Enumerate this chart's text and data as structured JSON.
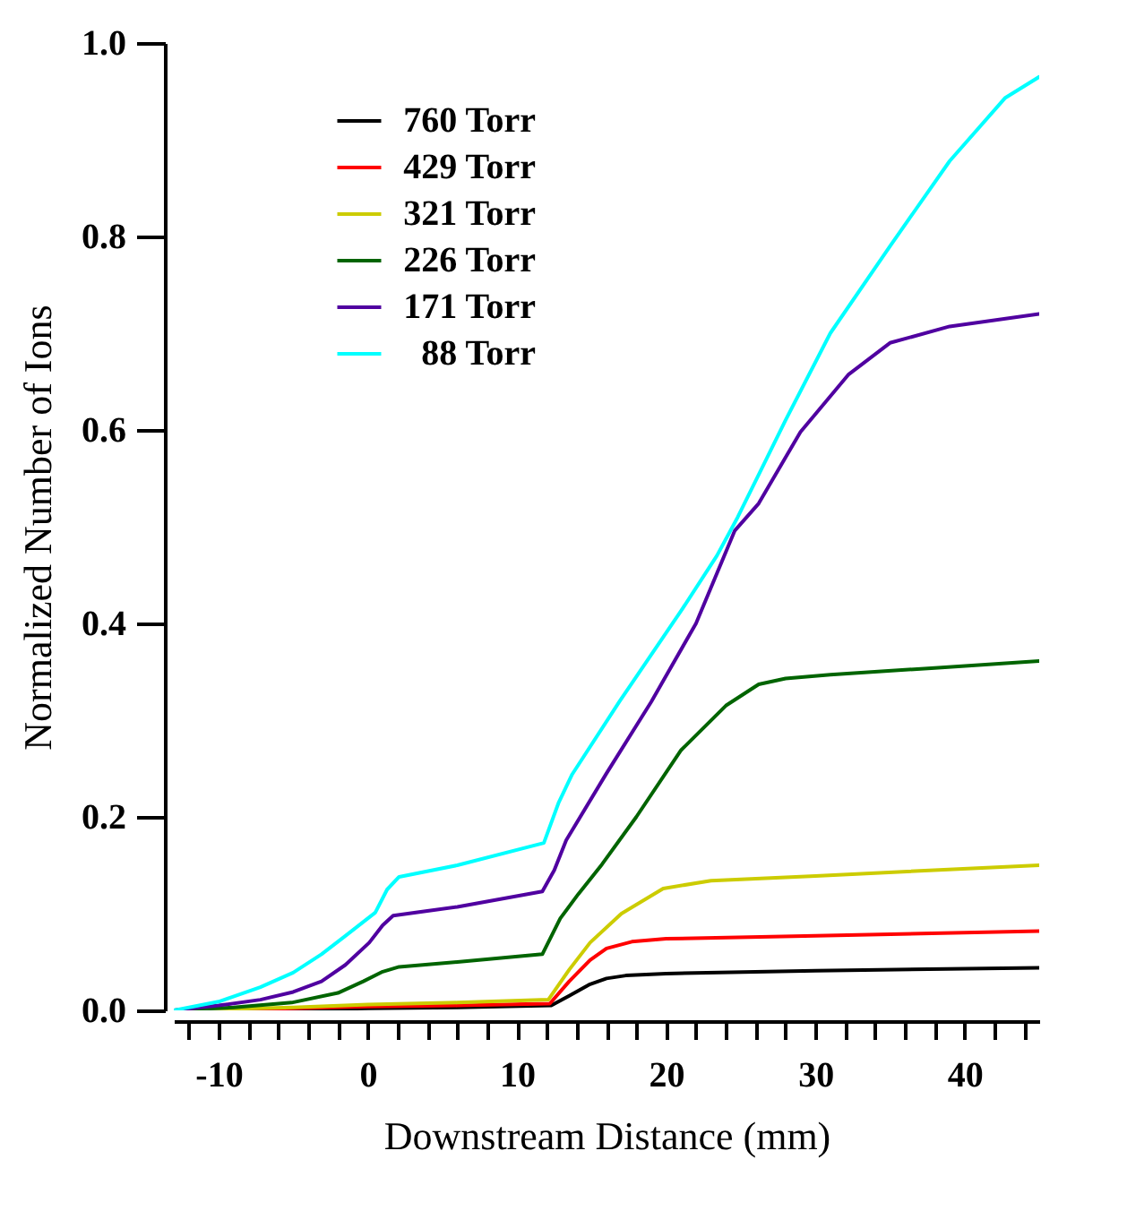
{
  "chart_data": {
    "type": "line",
    "xlabel": "Downstream Distance (mm)",
    "ylabel": "Normalized Number of Ions",
    "xlim": [
      -13,
      45
    ],
    "ylim": [
      0,
      1.0
    ],
    "xticks": [
      {
        "value": -12,
        "label": null
      },
      {
        "value": -10,
        "label": "-10"
      },
      {
        "value": -8,
        "label": null
      },
      {
        "value": -6,
        "label": null
      },
      {
        "value": -4,
        "label": null
      },
      {
        "value": -2,
        "label": null
      },
      0,
      {
        "value": 2,
        "label": null
      },
      {
        "value": 4,
        "label": null
      },
      {
        "value": 6,
        "label": null
      },
      {
        "value": 8,
        "label": null
      },
      10,
      {
        "value": 12,
        "label": null
      },
      {
        "value": 14,
        "label": null
      },
      {
        "value": 16,
        "label": null
      },
      {
        "value": 18,
        "label": null
      },
      20,
      {
        "value": 22,
        "label": null
      },
      {
        "value": 24,
        "label": null
      },
      {
        "value": 26,
        "label": null
      },
      {
        "value": 28,
        "label": null
      },
      30,
      {
        "value": 32,
        "label": null
      },
      {
        "value": 34,
        "label": null
      },
      {
        "value": 36,
        "label": null
      },
      {
        "value": 38,
        "label": null
      },
      40,
      {
        "value": 42,
        "label": null
      },
      {
        "value": 44,
        "label": null
      }
    ],
    "yticks": [
      {
        "value": 0,
        "label": "0.0"
      },
      {
        "value": 0.2,
        "label": "0.2"
      },
      {
        "value": 0.4,
        "label": "0.4"
      },
      {
        "value": 0.6,
        "label": "0.6"
      },
      {
        "value": 0.8,
        "label": "0.8"
      },
      {
        "value": 1,
        "label": "1.0"
      }
    ],
    "grid": false,
    "legend": "top left",
    "line_style": "solid",
    "marker": "none",
    "series": [
      {
        "name": "760 Torr",
        "color": "#000000",
        "x": [
          -13,
          -5,
          0,
          6,
          12.3,
          13.5,
          14.9,
          16,
          17.3,
          20,
          30,
          45
        ],
        "values": [
          0,
          0.001,
          0.002,
          0.003,
          0.005,
          0.015,
          0.027,
          0.033,
          0.036,
          0.038,
          0.041,
          0.044
        ]
      },
      {
        "name": "429 Torr",
        "color": "#ff0000",
        "x": [
          -13,
          -5,
          0,
          6,
          12.2,
          13.5,
          14.9,
          16,
          17.7,
          20,
          30,
          45
        ],
        "values": [
          0,
          0.002,
          0.004,
          0.005,
          0.007,
          0.03,
          0.052,
          0.064,
          0.071,
          0.074,
          0.077,
          0.082
        ]
      },
      {
        "name": "321 Torr",
        "color": "#cccc00",
        "x": [
          -13,
          -5,
          0,
          6,
          12.1,
          13.5,
          14.9,
          17,
          19.8,
          23,
          30,
          45
        ],
        "values": [
          0,
          0.003,
          0.006,
          0.008,
          0.011,
          0.042,
          0.07,
          0.1,
          0.126,
          0.134,
          0.139,
          0.15
        ]
      },
      {
        "name": "226 Torr",
        "color": "#006400",
        "x": [
          -13,
          -9,
          -5.1,
          -2,
          -0.3,
          1,
          2.1,
          6,
          11.7,
          12.9,
          14.1,
          15.7,
          18,
          21,
          24,
          26.2,
          28,
          31,
          38,
          45
        ],
        "values": [
          0,
          0.003,
          0.008,
          0.018,
          0.03,
          0.04,
          0.045,
          0.05,
          0.058,
          0.095,
          0.12,
          0.151,
          0.2,
          0.269,
          0.315,
          0.337,
          0.343,
          0.347,
          0.354,
          0.361
        ]
      },
      {
        "name": "171 Torr",
        "color": "#5000a0",
        "x": [
          -13,
          -10,
          -7.2,
          -5,
          -3.1,
          -1.5,
          0.1,
          1,
          1.7,
          6,
          11.7,
          12.5,
          13.3,
          16,
          19,
          22,
          24.6,
          26.2,
          29,
          32.2,
          35,
          39,
          45
        ],
        "values": [
          0,
          0.005,
          0.011,
          0.019,
          0.03,
          0.047,
          0.07,
          0.088,
          0.098,
          0.107,
          0.123,
          0.145,
          0.176,
          0.245,
          0.319,
          0.4,
          0.496,
          0.524,
          0.598,
          0.657,
          0.69,
          0.707,
          0.72
        ]
      },
      {
        "name": "88 Torr",
        "color": "#00ffff",
        "x": [
          -13,
          -10,
          -7.2,
          -5,
          -3.1,
          -1.5,
          0.5,
          1.3,
          2.1,
          6,
          11.8,
          12.8,
          13.7,
          16.9,
          21,
          23.4,
          24.8,
          28,
          31,
          35,
          39,
          42.7,
          45
        ],
        "values": [
          0,
          0.009,
          0.024,
          0.039,
          0.058,
          0.077,
          0.101,
          0.125,
          0.138,
          0.15,
          0.173,
          0.215,
          0.244,
          0.32,
          0.413,
          0.47,
          0.51,
          0.61,
          0.7,
          0.79,
          0.878,
          0.943,
          0.965
        ]
      }
    ]
  }
}
